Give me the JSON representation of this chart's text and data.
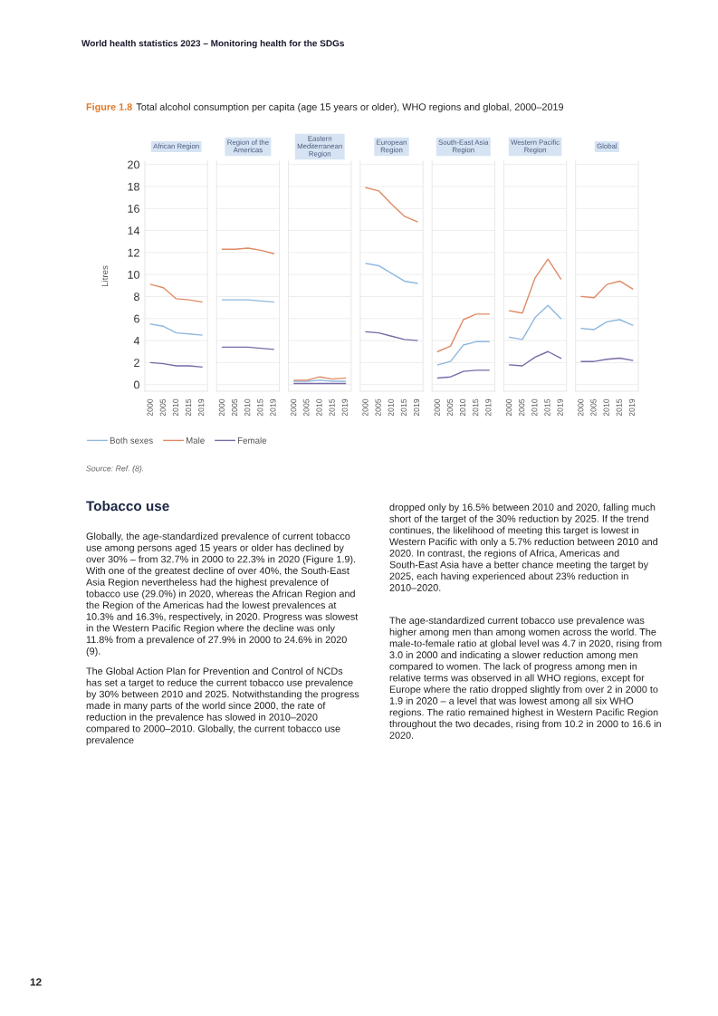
{
  "chart_data": [
    {
      "type": "other",
      "title": "Figure 1.8",
      "subtitle": "Total alcohol consumption per capita (age 15 years or older), WHO regions and global, 2000–2019",
      "annotations": [
        "World health statistics 2023 – Monitoring health for the SDGs",
        "Source: Ref. (8).",
        "Tobacco use",
        "Globally, the age-standardized prevalence of current tobacco use among persons aged 15 years or older has declined by over 30% – from 32.7% in 2000 to 22.3% in 2020 (Figure 1.9). With one of the greatest decline of over 40%, the South-East Asia Region nevertheless had the highest prevalence of tobacco use (29.0%) in 2020, whereas the African Region and the Region of the Americas had the lowest prevalences at 10.3% and 16.3%, respectively, in 2020. Progress was slowest in the Western Pacific Region where the decline was only 11.8% from a prevalence of 27.9% in 2000 to 24.6% in 2020 (9).",
        "The Global Action Plan for Prevention and Control of NCDs has set a target to reduce the current tobacco use prevalence by 30% between 2010 and 2025. Notwithstanding the progress made in many parts of the world since 2000, the rate of reduction in the prevalence has slowed in 2010–2020 compared to 2000–2010. Globally, the current tobacco use prevalence",
        "dropped only by 16.5% between 2010 and 2020, falling much short of the target of the 30% reduction by 2025. If the trend continues, the likelihood of meeting this target is lowest in Western Pacific with only a 5.7% reduction between 2010 and 2020. In contrast, the regions of Africa, Americas and South-East Asia have a better chance meeting the target by 2025, each having experienced about 23% reduction in 2010–2020.",
        "The age-standardized current tobacco use prevalence was higher among men than among women across the world. The male-to-female ratio at global level was 4.7 in 2020, rising from 3.0 in 2000 and indicating a slower reduction among men compared to women. The lack of progress among men in relative terms was observed in all WHO regions, except for Europe where the ratio dropped slightly from over 2 in 2000 to 1.9 in 2020 – a level that was lowest among all six WHO regions. The ratio remained highest in Western Pacific Region throughout the two decades, rising from 10.2 in 2000 to 16.6 in 2020.",
        "12"
      ]
    },
    {
      "type": "line",
      "title": "African Region",
      "ylabel": "Litres",
      "categories": [
        "2000",
        "2005",
        "2010",
        "2015",
        "2019"
      ],
      "ylim": [
        -0.6,
        20.3
      ],
      "yticks": [
        0,
        2,
        4,
        6,
        8,
        10,
        12,
        14,
        16,
        18,
        20
      ],
      "grid": "y",
      "legend": "bottom",
      "series": [
        {
          "name": "Both sexes",
          "color": "#8fb8de",
          "values": [
            5.5,
            5.3,
            4.7,
            4.6,
            4.5
          ]
        },
        {
          "name": "Male",
          "color": "#e08a65",
          "values": [
            9.1,
            8.8,
            7.8,
            7.7,
            7.5
          ]
        },
        {
          "name": "Female",
          "color": "#7a6aa8",
          "values": [
            2.0,
            1.9,
            1.7,
            1.7,
            1.6
          ]
        }
      ]
    },
    {
      "type": "line",
      "title": "Region of the Americas",
      "categories": [
        "2000",
        "2005",
        "2010",
        "2015",
        "2019"
      ],
      "ylim": [
        -0.6,
        20.3
      ],
      "yticks": [
        0,
        2,
        4,
        6,
        8,
        10,
        12,
        14,
        16,
        18,
        20
      ],
      "grid": "y",
      "tick_labels": "x",
      "series": [
        {
          "color": "#8fb8de",
          "values": [
            7.7,
            7.7,
            7.7,
            7.6,
            7.5
          ]
        },
        {
          "color": "#e08a65",
          "values": [
            12.3,
            12.3,
            12.4,
            12.2,
            11.9
          ]
        },
        {
          "color": "#7a6aa8",
          "values": [
            3.4,
            3.4,
            3.4,
            3.3,
            3.2
          ]
        }
      ]
    },
    {
      "type": "line",
      "title": "Eastern Mediterranean Region",
      "categories": [
        "2000",
        "2005",
        "2010",
        "2015",
        "2019"
      ],
      "ylim": [
        -0.6,
        20.3
      ],
      "yticks": [
        0,
        2,
        4,
        6,
        8,
        10,
        12,
        14,
        16,
        18,
        20
      ],
      "grid": "y",
      "tick_labels": "x",
      "series": [
        {
          "color": "#8fb8de",
          "values": [
            0.3,
            0.3,
            0.4,
            0.3,
            0.3
          ]
        },
        {
          "color": "#e08a65",
          "values": [
            0.4,
            0.4,
            0.7,
            0.5,
            0.6
          ]
        },
        {
          "color": "#7a6aa8",
          "values": [
            0.1,
            0.1,
            0.1,
            0.1,
            0.1
          ]
        }
      ]
    },
    {
      "type": "line",
      "title": "European Region",
      "categories": [
        "2000",
        "2005",
        "2010",
        "2015",
        "2019"
      ],
      "ylim": [
        -0.6,
        20.3
      ],
      "yticks": [
        0,
        2,
        4,
        6,
        8,
        10,
        12,
        14,
        16,
        18,
        20
      ],
      "grid": "y",
      "tick_labels": "x",
      "series": [
        {
          "color": "#8fb8de",
          "values": [
            11.0,
            10.8,
            10.1,
            9.4,
            9.2
          ]
        },
        {
          "color": "#e08a65",
          "values": [
            17.9,
            17.6,
            16.4,
            15.3,
            14.8
          ]
        },
        {
          "color": "#7a6aa8",
          "values": [
            4.8,
            4.7,
            4.4,
            4.1,
            4.0
          ]
        }
      ]
    },
    {
      "type": "line",
      "title": "South-East Asia Region",
      "categories": [
        "2000",
        "2005",
        "2010",
        "2015",
        "2019"
      ],
      "ylim": [
        -0.6,
        20.3
      ],
      "yticks": [
        0,
        2,
        4,
        6,
        8,
        10,
        12,
        14,
        16,
        18,
        20
      ],
      "grid": "y",
      "tick_labels": "x",
      "series": [
        {
          "color": "#8fb8de",
          "values": [
            1.8,
            2.1,
            3.6,
            3.9,
            3.9
          ]
        },
        {
          "color": "#e08a65",
          "values": [
            3.0,
            3.5,
            5.9,
            6.4,
            6.4
          ]
        },
        {
          "color": "#7a6aa8",
          "values": [
            0.6,
            0.7,
            1.2,
            1.3,
            1.3
          ]
        }
      ]
    },
    {
      "type": "line",
      "title": "Western Pacific Region",
      "categories": [
        "2000",
        "2005",
        "2010",
        "2015",
        "2019"
      ],
      "ylim": [
        -0.6,
        20.3
      ],
      "yticks": [
        0,
        2,
        4,
        6,
        8,
        10,
        12,
        14,
        16,
        18,
        20
      ],
      "grid": "y",
      "tick_labels": "x",
      "series": [
        {
          "color": "#8fb8de",
          "values": [
            4.3,
            4.1,
            6.1,
            7.2,
            6.0
          ]
        },
        {
          "color": "#e08a65",
          "values": [
            6.7,
            6.5,
            9.7,
            11.4,
            9.6
          ]
        },
        {
          "color": "#7a6aa8",
          "values": [
            1.8,
            1.7,
            2.5,
            3.0,
            2.4
          ]
        }
      ]
    },
    {
      "type": "line",
      "title": "Global",
      "categories": [
        "2000",
        "2005",
        "2010",
        "2015",
        "2019"
      ],
      "ylim": [
        -0.6,
        20.3
      ],
      "yticks": [
        0,
        2,
        4,
        6,
        8,
        10,
        12,
        14,
        16,
        18,
        20
      ],
      "grid": "y",
      "tick_labels": "x",
      "series": [
        {
          "color": "#8fb8de",
          "values": [
            5.1,
            5.0,
            5.7,
            5.9,
            5.4
          ]
        },
        {
          "color": "#e08a65",
          "values": [
            8.0,
            7.9,
            9.1,
            9.4,
            8.7
          ]
        },
        {
          "color": "#7a6aa8",
          "values": [
            2.1,
            2.1,
            2.3,
            2.4,
            2.2
          ]
        }
      ]
    }
  ]
}
